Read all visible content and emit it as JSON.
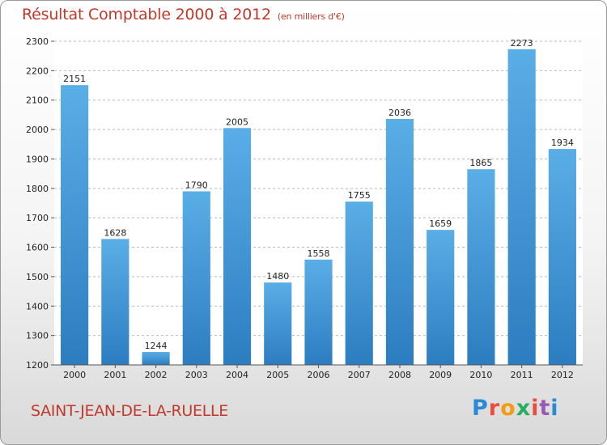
{
  "colors": {
    "bar_top": "#5aaee6",
    "bar_bottom": "#2c7dc0",
    "title": "#c0392b",
    "grid": "#b9b9b9"
  },
  "header": {
    "title": "Résultat Comptable 2000 à 2012",
    "subtitle": "(en milliers d'€)"
  },
  "footer": {
    "commune": "SAINT-JEAN-DE-LA-RUELLE",
    "logo_letters": [
      "P",
      "r",
      "o",
      "x",
      "i",
      "t",
      "i"
    ],
    "logo_colors": [
      "#2a8ad6",
      "#e74c3c",
      "#f39c12",
      "#27ae60",
      "#e74c3c",
      "#9b59b6",
      "#2a8ad6"
    ]
  },
  "chart_data": {
    "type": "bar",
    "title": "Résultat Comptable 2000 à 2012",
    "subtitle": "(en milliers d'€)",
    "categories": [
      "2000",
      "2001",
      "2002",
      "2003",
      "2004",
      "2005",
      "2006",
      "2007",
      "2008",
      "2009",
      "2010",
      "2011",
      "2012"
    ],
    "values": [
      2151,
      1628,
      1244,
      1790,
      2005,
      1480,
      1558,
      1755,
      2036,
      1659,
      1865,
      2273,
      1934
    ],
    "ylim": [
      1200,
      2300
    ],
    "yticks": [
      1200,
      1300,
      1400,
      1500,
      1600,
      1700,
      1800,
      1900,
      2000,
      2100,
      2200,
      2300
    ],
    "grid": true,
    "legend": "none",
    "data_labels": true
  }
}
